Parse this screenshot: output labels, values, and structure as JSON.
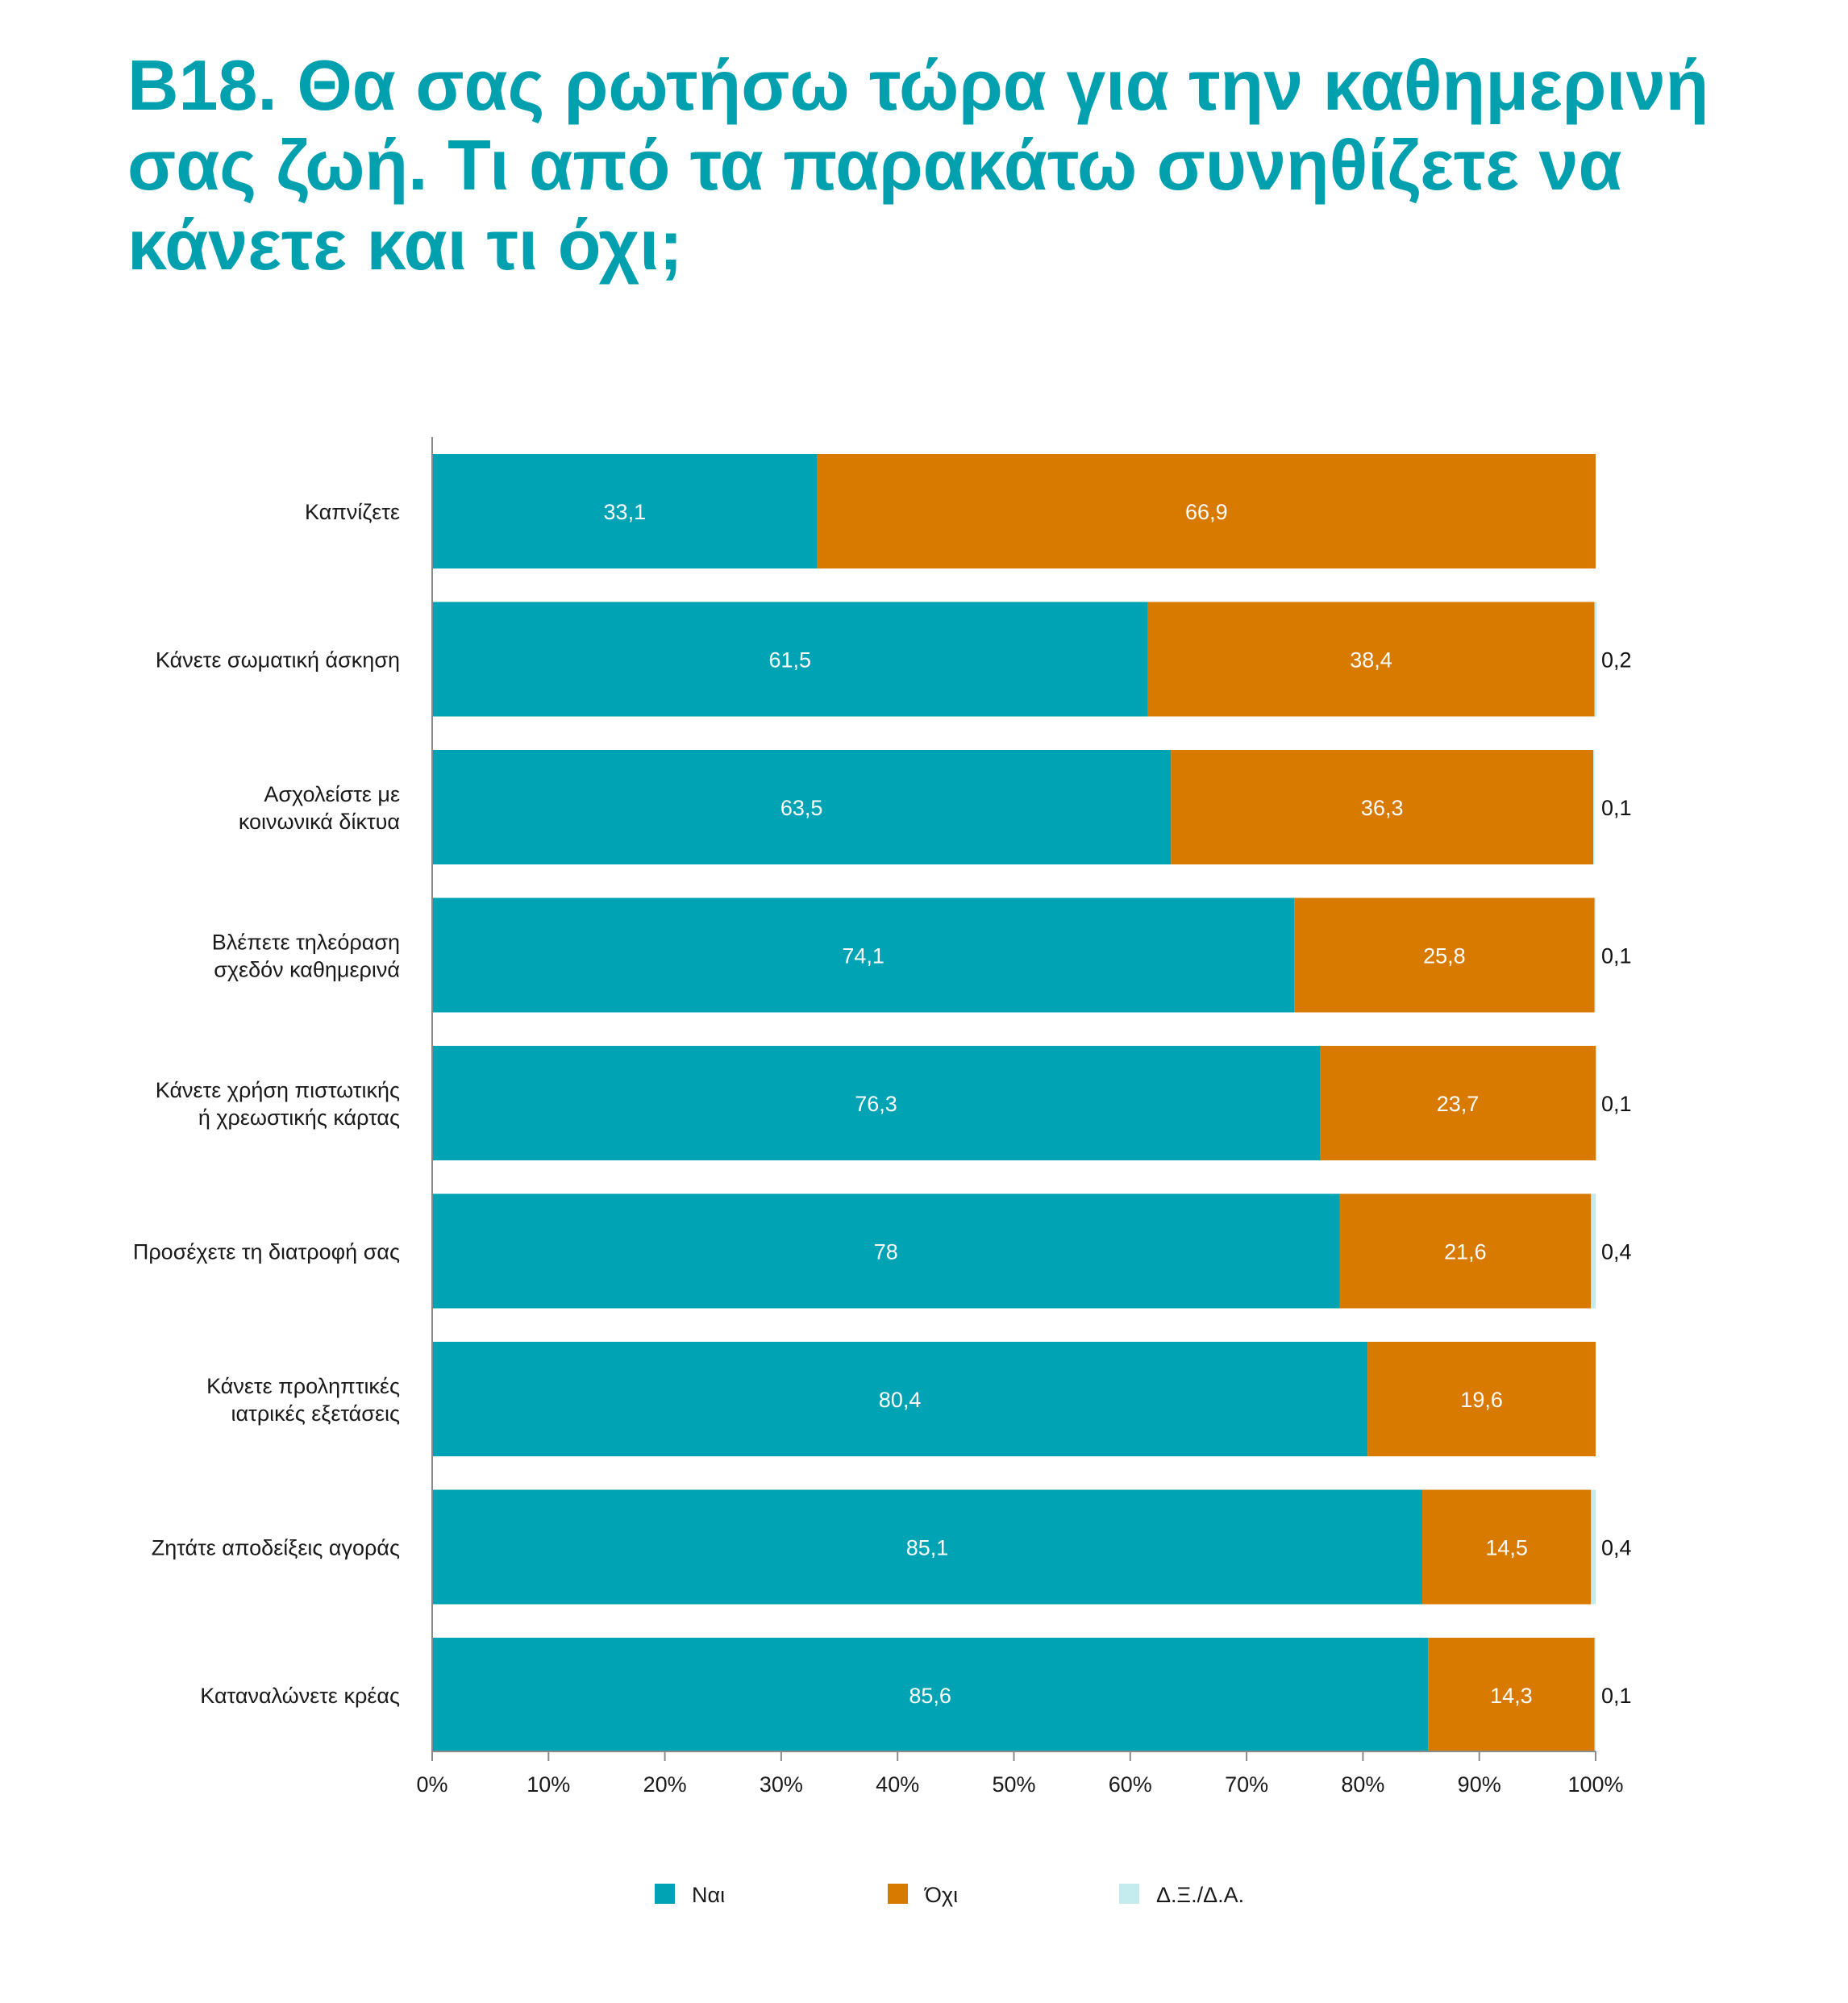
{
  "title": "B18. Θα σας ρωτήσω τώρα για την καθημερινή σας ζωή. Τι από τα παρακάτω συνηθίζετε να κάνετε και τι όχι;",
  "chart_data": {
    "type": "bar",
    "orientation": "horizontal",
    "stacked": "percent",
    "title": "B18. Θα σας ρωτήσω τώρα για την καθημερινή σας ζωή. Τι από τα παρακάτω συνηθίζετε να κάνετε και τι όχι;",
    "categories": [
      [
        "Καπνίζετε"
      ],
      [
        "Κάνετε σωματική άσκηση"
      ],
      [
        "Ασχολείστε με",
        "κοινωνικά δίκτυα"
      ],
      [
        "Βλέπετε τηλεόραση",
        "σχεδόν καθημερινά"
      ],
      [
        "Κάνετε χρήση πιστωτικής",
        "ή χρεωστικής κάρτας"
      ],
      [
        "Προσέχετε τη διατροφή σας"
      ],
      [
        "Κάνετε προληπτικές",
        "ιατρικές εξετάσεις"
      ],
      [
        "Ζητάτε αποδείξεις αγοράς"
      ],
      [
        "Καταναλώνετε κρέας"
      ]
    ],
    "series": [
      {
        "name": "Ναι",
        "color": "#00a3b4",
        "values": [
          33.1,
          61.5,
          63.5,
          74.1,
          76.3,
          78,
          80.4,
          85.1,
          85.6
        ]
      },
      {
        "name": "Όχι",
        "color": "#d97a00",
        "values": [
          66.9,
          38.4,
          36.3,
          25.8,
          23.7,
          21.6,
          19.6,
          14.5,
          14.3
        ]
      },
      {
        "name": "Δ.Ξ./Δ.Α.",
        "color": "#c4ebed",
        "values": [
          null,
          0.2,
          0.1,
          0.1,
          0.1,
          0.4,
          null,
          0.4,
          0.1
        ]
      }
    ],
    "data_labels": [
      [
        "33,1",
        "66,9",
        ""
      ],
      [
        "61,5",
        "38,4",
        "0,2"
      ],
      [
        "63,5",
        "36,3",
        "0,1"
      ],
      [
        "74,1",
        "25,8",
        "0,1"
      ],
      [
        "76,3",
        "23,7",
        "0,1"
      ],
      [
        "78",
        "21,6",
        "0,4"
      ],
      [
        "80,4",
        "19,6",
        ""
      ],
      [
        "85,1",
        "14,5",
        "0,4"
      ],
      [
        "85,6",
        "14,3",
        "0,1"
      ]
    ],
    "xlim": [
      0,
      100
    ],
    "xticks": [
      "0%",
      "10%",
      "20%",
      "30%",
      "40%",
      "50%",
      "60%",
      "70%",
      "80%",
      "90%",
      "100%"
    ],
    "grid": false,
    "legend_position": "bottom"
  }
}
